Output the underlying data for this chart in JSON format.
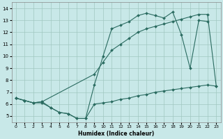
{
  "xlabel": "Humidex (Indice chaleur)",
  "xlim": [
    -0.5,
    23.5
  ],
  "ylim": [
    4.5,
    14.5
  ],
  "xticks": [
    0,
    1,
    2,
    3,
    4,
    5,
    6,
    7,
    8,
    9,
    10,
    11,
    12,
    13,
    14,
    15,
    16,
    17,
    18,
    19,
    20,
    21,
    22,
    23
  ],
  "yticks": [
    5,
    6,
    7,
    8,
    9,
    10,
    11,
    12,
    13,
    14
  ],
  "bg_color": "#c8e8e8",
  "line_color": "#2a6b60",
  "grid_color": "#a0c8c0",
  "line1_x": [
    0,
    1,
    2,
    3,
    4,
    5,
    6,
    7,
    8,
    9,
    10,
    11,
    12,
    13,
    14,
    15,
    16,
    17,
    18,
    19,
    20,
    21,
    22,
    23
  ],
  "line1_y": [
    6.5,
    6.3,
    6.1,
    6.1,
    5.7,
    5.3,
    5.2,
    4.8,
    4.8,
    6.0,
    6.1,
    6.2,
    6.4,
    6.5,
    6.7,
    6.8,
    7.0,
    7.1,
    7.2,
    7.3,
    7.4,
    7.5,
    7.6,
    7.5
  ],
  "line2_x": [
    0,
    1,
    2,
    3,
    4,
    5,
    6,
    7,
    8,
    9,
    10,
    11,
    12,
    13,
    14,
    15,
    16,
    17,
    18,
    19,
    20,
    21,
    22
  ],
  "line2_y": [
    6.5,
    6.3,
    6.1,
    6.2,
    5.7,
    5.3,
    5.2,
    4.8,
    4.8,
    7.6,
    10.0,
    12.3,
    12.6,
    12.9,
    13.4,
    13.6,
    13.4,
    13.2,
    13.7,
    11.8,
    9.0,
    13.0,
    12.9
  ],
  "line3_x": [
    0,
    1,
    2,
    3,
    9,
    10,
    11,
    12,
    13,
    14,
    15,
    16,
    17,
    18,
    19,
    20,
    21,
    22,
    23
  ],
  "line3_y": [
    6.5,
    6.3,
    6.1,
    6.2,
    8.5,
    9.5,
    10.5,
    11.0,
    11.5,
    12.0,
    12.3,
    12.5,
    12.7,
    12.9,
    13.1,
    13.3,
    13.5,
    13.5,
    7.5
  ]
}
